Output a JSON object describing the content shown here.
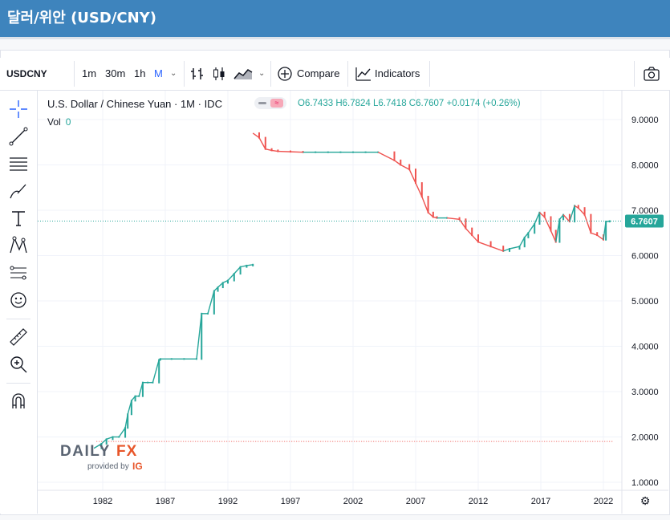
{
  "page": {
    "title": "달러/위안 (USD/CNY)"
  },
  "toolbar": {
    "symbol": "USDCNY",
    "intervals": [
      "1m",
      "30m",
      "1h",
      "M"
    ],
    "compare_label": "Compare",
    "indicators_label": "Indicators"
  },
  "legend": {
    "name": "U.S. Dollar / Chinese Yuan · 1M · IDC",
    "open": "O6.7433",
    "high": "H6.7824",
    "low": "L6.7418",
    "close": "C6.7607",
    "change": "+0.0174 (+0.26%)",
    "vol_label": "Vol",
    "vol_value": "0"
  },
  "logo": {
    "brand": "DAILYFX",
    "provided_by": "provided by",
    "ig": "IG"
  },
  "colors": {
    "up": "#26a69a",
    "down": "#ef5350",
    "header": "#3e84bd",
    "price_line": "#26a69a",
    "price_tag": "#26a69a"
  },
  "chart_data": {
    "type": "line",
    "title": "U.S. Dollar / Chinese Yuan · 1M · IDC",
    "x_ticks": [
      "1982",
      "1987",
      "1992",
      "1997",
      "2002",
      "2007",
      "2012",
      "2017",
      "2022"
    ],
    "y_ticks": [
      "1.0000",
      "2.0000",
      "3.0000",
      "4.0000",
      "5.0000",
      "6.0000",
      "7.0000",
      "8.0000",
      "9.0000"
    ],
    "ylim": [
      0.8,
      9.5
    ],
    "xlim": [
      1979.5,
      2023.5
    ],
    "last_price": "6.7607",
    "series": [
      {
        "segment": "early",
        "x": [
          1981.3,
          1981.9,
          1982.3,
          1982.8,
          1983.3,
          1983.8,
          1984.0,
          1984.3,
          1984.6,
          1984.9,
          1985.2,
          1985.6,
          1986.0,
          1986.5,
          1986.6,
          1987.5,
          1988.5,
          1989.5,
          1989.9,
          1990.4,
          1990.9,
          1991.2,
          1991.6,
          1992.0,
          1992.5,
          1993.0,
          1993.5,
          1994.0
        ],
        "y": [
          1.75,
          1.85,
          1.95,
          2.0,
          2.0,
          2.2,
          2.5,
          2.8,
          2.9,
          2.9,
          3.2,
          3.2,
          3.2,
          3.7,
          3.72,
          3.72,
          3.72,
          3.72,
          4.72,
          4.72,
          5.22,
          5.3,
          5.4,
          5.45,
          5.6,
          5.75,
          5.78,
          5.8
        ]
      },
      {
        "segment": "late",
        "x": [
          1994.0,
          1994.5,
          1995.0,
          1995.5,
          1996.0,
          1997.0,
          1998.0,
          1999.0,
          2000.0,
          2001.0,
          2002.0,
          2003.0,
          2004.0,
          2005.3,
          2005.8,
          2006.5,
          2007.0,
          2007.5,
          2008.0,
          2008.4,
          2008.7,
          2009.5,
          2010.5,
          2011.0,
          2011.5,
          2012.0,
          2013.0,
          2014.0,
          2014.5,
          2015.3,
          2015.7,
          2016.0,
          2016.5,
          2016.9,
          2017.3,
          2017.8,
          2018.2,
          2018.5,
          2018.8,
          2019.3,
          2019.7,
          2020.0,
          2020.5,
          2021.0,
          2021.5,
          2022.0,
          2022.2,
          2022.5
        ],
        "y": [
          8.7,
          8.6,
          8.35,
          8.32,
          8.3,
          8.29,
          8.28,
          8.28,
          8.28,
          8.28,
          8.28,
          8.28,
          8.28,
          8.1,
          8.0,
          7.9,
          7.6,
          7.3,
          6.95,
          6.85,
          6.83,
          6.83,
          6.8,
          6.6,
          6.45,
          6.3,
          6.2,
          6.1,
          6.15,
          6.2,
          6.4,
          6.5,
          6.7,
          6.95,
          6.85,
          6.55,
          6.3,
          6.8,
          6.9,
          6.75,
          7.1,
          7.05,
          6.9,
          6.5,
          6.45,
          6.35,
          6.75,
          6.7607
        ]
      }
    ]
  }
}
